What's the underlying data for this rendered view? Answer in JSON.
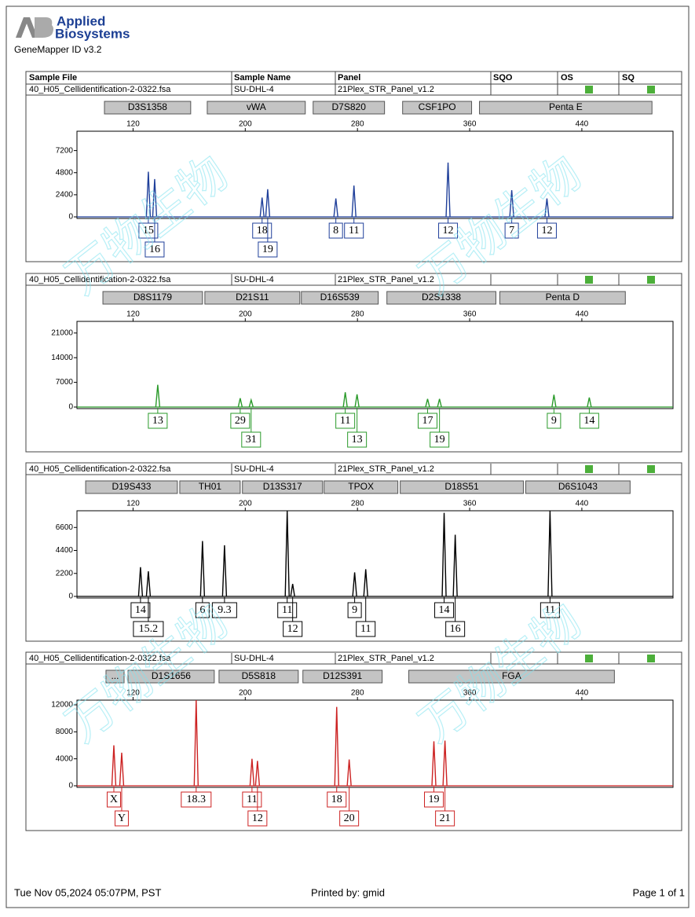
{
  "header": {
    "brand_line1": "Applied",
    "brand_line2": "Biosystems",
    "software": "GeneMapper ID v3.2"
  },
  "columns": [
    "Sample File",
    "Sample Name",
    "Panel",
    "SQO",
    "OS",
    "SQ"
  ],
  "watermark": "万物生物",
  "chart_data": [
    {
      "type": "line",
      "sample_file": "40_H05_Cellidentification-2-0322.fsa",
      "sample_name": "SU-DHL-4",
      "panel": "21Plex_STR_Panel_v1.2",
      "markers": [
        {
          "name": "D3S1358",
          "range": [
            99.6,
            161.1
          ]
        },
        {
          "name": "vWA",
          "range": [
            172.9,
            242.8
          ]
        },
        {
          "name": "D7S820",
          "range": [
            248.4,
            299.3
          ]
        },
        {
          "name": "CSF1PO",
          "range": [
            312.2,
            361.4
          ]
        },
        {
          "name": "Penta E",
          "range": [
            367,
            490
          ]
        }
      ],
      "xlim": [
        80,
        505
      ],
      "xticks": [
        120,
        200,
        280,
        360,
        440
      ],
      "ylim": [
        0,
        9300
      ],
      "yticks": [
        0,
        2400,
        4800,
        7200
      ],
      "color": "#1f3f9a",
      "x": [
        130.9,
        135.4,
        212,
        216,
        264.6,
        277.5,
        344.6,
        390,
        415.1
      ],
      "values": [
        4900,
        4100,
        2100,
        3000,
        2000,
        3400,
        5900,
        2900,
        2000
      ],
      "alleles": [
        "15",
        "16",
        "18",
        "19",
        "8",
        "11",
        "12",
        "7",
        "12"
      ]
    },
    {
      "type": "line",
      "sample_file": "40_H05_Cellidentification-2-0322.fsa",
      "sample_name": "SU-DHL-4",
      "panel": "21Plex_STR_Panel_v1.2",
      "markers": [
        {
          "name": "D8S1179",
          "range": [
            98.5,
            169.5
          ]
        },
        {
          "name": "D21S11",
          "range": [
            171.2,
            238.9
          ]
        },
        {
          "name": "D16S539",
          "range": [
            240,
            294.8
          ]
        },
        {
          "name": "D2S1338",
          "range": [
            301,
            378.7
          ]
        },
        {
          "name": "Penta D",
          "range": [
            381.5,
            471
          ]
        }
      ],
      "xlim": [
        80,
        505
      ],
      "xticks": [
        120,
        200,
        280,
        360,
        440
      ],
      "ylim": [
        0,
        24300
      ],
      "yticks": [
        0,
        7000,
        14000,
        21000
      ],
      "color": "#2a9a2a",
      "x": [
        137.6,
        196.4,
        204.2,
        271.3,
        279.7,
        330,
        338.5,
        420.1,
        445.3
      ],
      "values": [
        6300,
        2500,
        2000,
        4200,
        3600,
        2300,
        2300,
        3500,
        2700
      ],
      "alleles": [
        "13",
        "29",
        "31",
        "11",
        "13",
        "17",
        "19",
        "9",
        "14"
      ]
    },
    {
      "type": "line",
      "sample_file": "40_H05_Cellidentification-2-0322.fsa",
      "sample_name": "SU-DHL-4",
      "panel": "21Plex_STR_Panel_v1.2",
      "markers": [
        {
          "name": "D19S433",
          "range": [
            86.2,
            151.6
          ]
        },
        {
          "name": "TH01",
          "range": [
            153.3,
            196.4
          ]
        },
        {
          "name": "D13S317",
          "range": [
            198,
            255.1
          ]
        },
        {
          "name": "TPOX",
          "range": [
            256.2,
            308.8
          ]
        },
        {
          "name": "D18S51",
          "range": [
            310.5,
            398.3
          ]
        },
        {
          "name": "D6S1043",
          "range": [
            400,
            474.4
          ]
        }
      ],
      "xlim": [
        80,
        505
      ],
      "xticks": [
        120,
        200,
        280,
        360,
        440
      ],
      "ylim": [
        0,
        8200
      ],
      "yticks": [
        0,
        2200,
        4400,
        6600
      ],
      "color": "#000000",
      "x": [
        125.3,
        130.9,
        169.5,
        185.2,
        229.9,
        233.8,
        278,
        285.9,
        341.8,
        349.7,
        417.3
      ],
      "values": [
        2800,
        2400,
        5300,
        4900,
        8200,
        1200,
        2300,
        2600,
        8000,
        5900,
        8200
      ],
      "alleles": [
        "14",
        "15.2",
        "6",
        "9.3",
        "11",
        "12",
        "9",
        "11",
        "14",
        "16",
        "11"
      ]
    },
    {
      "type": "line",
      "sample_file": "40_H05_Cellidentification-2-0322.fsa",
      "sample_name": "SU-DHL-4",
      "panel": "21Plex_STR_Panel_v1.2",
      "markers": [
        {
          "name": "...",
          "range": [
            100.7,
            113.6
          ]
        },
        {
          "name": "D1S1656",
          "range": [
            116.4,
            177.9
          ]
        },
        {
          "name": "D5S818",
          "range": [
            181.3,
            237.8
          ]
        },
        {
          "name": "D12S391",
          "range": [
            241.1,
            297.6
          ]
        },
        {
          "name": "FGA",
          "range": [
            316.6,
            463.2
          ]
        }
      ],
      "xlim": [
        80,
        505
      ],
      "xticks": [
        120,
        200,
        280,
        360,
        440
      ],
      "ylim": [
        0,
        12700
      ],
      "yticks": [
        0,
        4000,
        8000,
        12000
      ],
      "color": "#cc2222",
      "x": [
        106.3,
        111.9,
        165,
        204.8,
        208.7,
        265.2,
        274.1,
        334.5,
        342.4
      ],
      "values": [
        6000,
        4900,
        12700,
        4000,
        3700,
        11700,
        3900,
        6600,
        6700
      ],
      "alleles": [
        "X",
        "Y",
        "18.3",
        "11",
        "12",
        "18",
        "20",
        "19",
        "21"
      ]
    }
  ],
  "footer": {
    "date": "Tue Nov 05,2024 05:07PM, PST",
    "printed_by": "Printed by: gmid",
    "page": "Page 1 of 1"
  }
}
